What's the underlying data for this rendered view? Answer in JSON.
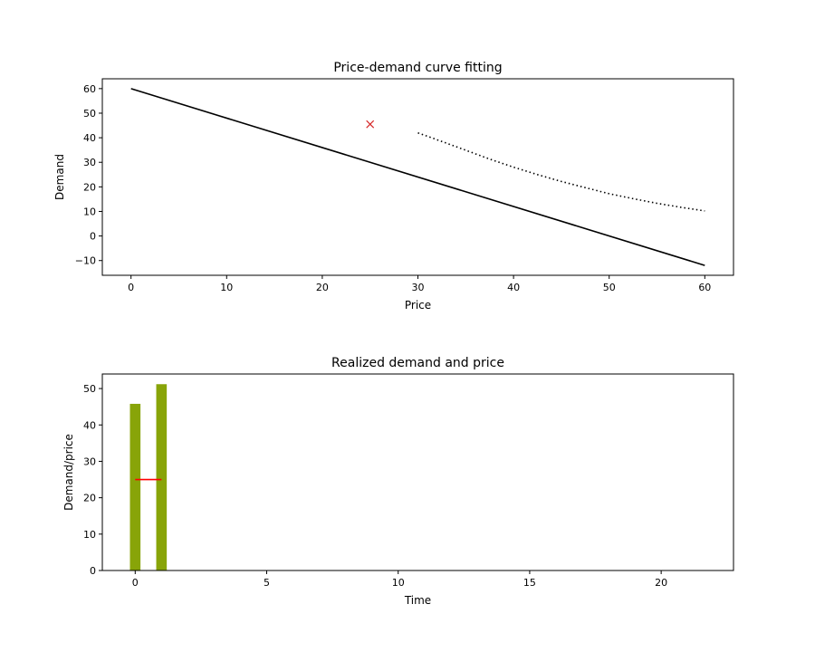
{
  "chart_data": [
    {
      "type": "line",
      "title": "Price-demand curve fitting",
      "xlabel": "Price",
      "ylabel": "Demand",
      "xlim": [
        -3,
        63
      ],
      "ylim": [
        -16,
        64
      ],
      "xticks": [
        0,
        10,
        20,
        30,
        40,
        50,
        60
      ],
      "yticks": [
        -10,
        0,
        10,
        20,
        30,
        40,
        50,
        60
      ],
      "grid": false,
      "series": [
        {
          "kind": "line",
          "style": "solid",
          "color": "#000000",
          "x": [
            0,
            60
          ],
          "y": [
            60,
            -12
          ]
        },
        {
          "kind": "line",
          "style": "dotted",
          "color": "#000000",
          "x": [
            30,
            32.5,
            35,
            37.5,
            40,
            42.5,
            45,
            47.5,
            50,
            52.5,
            55,
            57.5,
            60
          ],
          "y": [
            42,
            38.5,
            34.9,
            31.3,
            28,
            25,
            22.2,
            19.7,
            17.2,
            15.2,
            13.3,
            11.7,
            10.2
          ]
        },
        {
          "kind": "scatter",
          "marker": "x",
          "color": "#d62728",
          "x": [
            25
          ],
          "y": [
            45.5
          ]
        }
      ]
    },
    {
      "type": "bar",
      "title": "Realized demand and price",
      "xlabel": "Time",
      "ylabel": "Demand/price",
      "xlim": [
        -1.25,
        22.75
      ],
      "ylim": [
        0,
        54
      ],
      "xticks": [
        0,
        5,
        10,
        15,
        20
      ],
      "yticks": [
        0,
        10,
        20,
        30,
        40,
        50
      ],
      "grid": false,
      "bars": {
        "color": "#88a408",
        "width": 0.4,
        "x": [
          0,
          1
        ],
        "values": [
          45.8,
          51.2
        ]
      },
      "price_segments": {
        "color": "#ff0000",
        "segments": [
          {
            "x": [
              0,
              1
            ],
            "y": [
              25,
              25
            ]
          }
        ]
      }
    }
  ]
}
